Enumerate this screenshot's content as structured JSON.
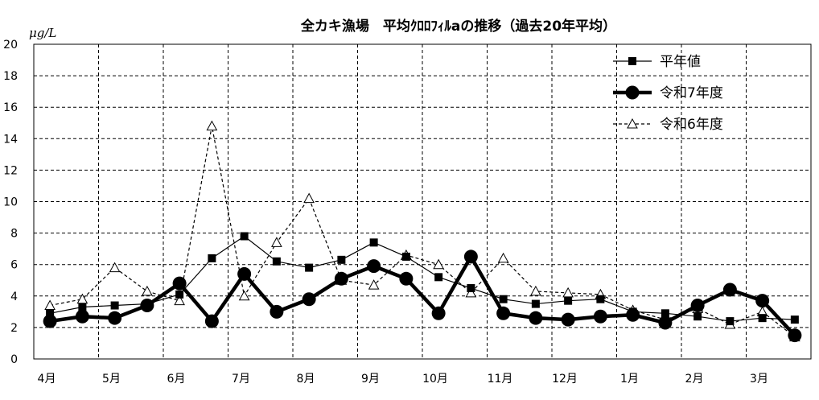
{
  "chart_data": {
    "type": "line",
    "title": "全カキ漁場　平均ｸﾛﾛﾌｨﾙaの推移（過去20年平均）",
    "ylabel": "μg/L",
    "ylim": [
      0,
      20
    ],
    "y_ticks": [
      "0",
      "2",
      "4",
      "6",
      "8",
      "10",
      "12",
      "14",
      "16",
      "18",
      "20"
    ],
    "x_tick_labels": [
      "4月",
      "5月",
      "6月",
      "7月",
      "8月",
      "9月",
      "10月",
      "11月",
      "12月",
      "1月",
      "2月",
      "3月"
    ],
    "grid": true,
    "legend_position": "top-right",
    "x": [
      0,
      1,
      2,
      3,
      4,
      5,
      6,
      7,
      8,
      9,
      10,
      11,
      12,
      13,
      14,
      15,
      16,
      17,
      18,
      19,
      20,
      21,
      22,
      23
    ],
    "series": [
      {
        "name": "平年値",
        "style": "thin-solid-square",
        "color": "#000000",
        "values": [
          2.9,
          3.3,
          3.4,
          3.5,
          4.1,
          6.4,
          7.8,
          6.2,
          5.8,
          6.3,
          7.4,
          6.5,
          5.2,
          4.5,
          3.8,
          3.5,
          3.7,
          3.8,
          3.0,
          2.9,
          2.7,
          2.4,
          2.6,
          2.5
        ]
      },
      {
        "name": "令和7年度",
        "style": "thick-solid-circle",
        "color": "#000000",
        "values": [
          2.4,
          2.7,
          2.6,
          3.4,
          4.8,
          2.4,
          5.4,
          3.0,
          3.8,
          5.1,
          5.9,
          5.1,
          2.9,
          6.5,
          2.9,
          2.6,
          2.5,
          2.7,
          2.8,
          2.3,
          3.4,
          4.4,
          3.7,
          1.5
        ]
      },
      {
        "name": "令和6年度",
        "style": "dashed-triangle",
        "color": "#000000",
        "values": [
          3.4,
          3.8,
          5.8,
          4.3,
          3.7,
          14.8,
          4.0,
          7.4,
          10.2,
          5.0,
          4.7,
          6.6,
          6.0,
          4.2,
          6.4,
          4.3,
          4.2,
          4.1,
          3.1,
          2.5,
          3.2,
          2.2,
          3.0,
          1.4
        ]
      }
    ]
  }
}
